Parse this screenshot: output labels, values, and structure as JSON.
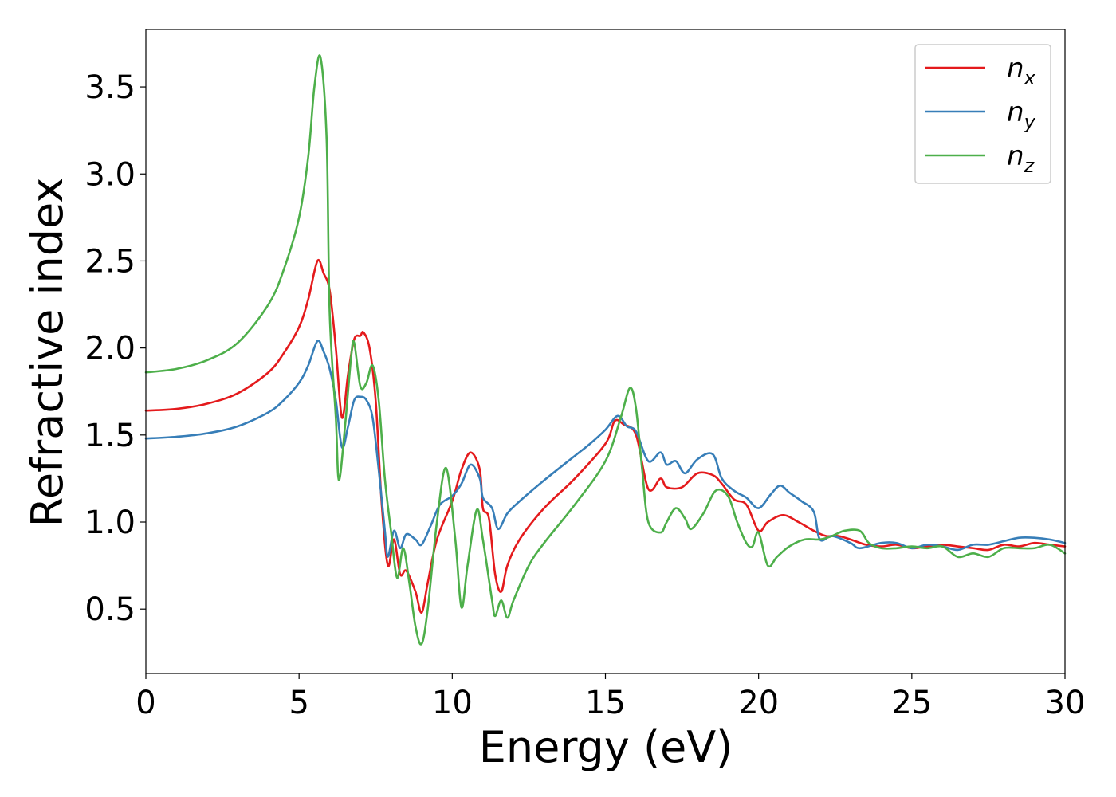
{
  "chart_data": {
    "type": "line",
    "title": "",
    "xlabel": "Energy (eV)",
    "ylabel": "Refractive index",
    "xlim": [
      0,
      30
    ],
    "ylim": [
      0.13,
      3.83
    ],
    "xticks": [
      0,
      5,
      10,
      15,
      20,
      25,
      30
    ],
    "yticks": [
      0.5,
      1.0,
      1.5,
      2.0,
      2.5,
      3.0,
      3.5
    ],
    "xtick_labels": [
      "0",
      "5",
      "10",
      "15",
      "20",
      "25",
      "30"
    ],
    "ytick_labels": [
      "0.5",
      "1.0",
      "1.5",
      "2.0",
      "2.5",
      "3.0",
      "3.5"
    ],
    "grid": false,
    "legend_position": "top-right",
    "series": [
      {
        "base": "n",
        "sub": "x",
        "color": "#e41a1c",
        "points": [
          [
            0,
            1.64
          ],
          [
            1,
            1.65
          ],
          [
            2,
            1.68
          ],
          [
            3,
            1.74
          ],
          [
            4,
            1.86
          ],
          [
            4.5,
            1.97
          ],
          [
            5,
            2.12
          ],
          [
            5.3,
            2.28
          ],
          [
            5.6,
            2.5
          ],
          [
            5.8,
            2.43
          ],
          [
            6.0,
            2.33
          ],
          [
            6.2,
            2.0
          ],
          [
            6.4,
            1.6
          ],
          [
            6.6,
            1.85
          ],
          [
            6.8,
            2.05
          ],
          [
            7.0,
            2.07
          ],
          [
            7.1,
            2.09
          ],
          [
            7.3,
            2.0
          ],
          [
            7.5,
            1.7
          ],
          [
            7.7,
            1.1
          ],
          [
            7.9,
            0.75
          ],
          [
            8.1,
            0.9
          ],
          [
            8.3,
            0.7
          ],
          [
            8.5,
            0.72
          ],
          [
            8.8,
            0.6
          ],
          [
            9.0,
            0.48
          ],
          [
            9.2,
            0.65
          ],
          [
            9.5,
            0.9
          ],
          [
            10.0,
            1.12
          ],
          [
            10.3,
            1.3
          ],
          [
            10.6,
            1.4
          ],
          [
            10.9,
            1.3
          ],
          [
            11.0,
            1.08
          ],
          [
            11.2,
            1.02
          ],
          [
            11.4,
            0.7
          ],
          [
            11.6,
            0.6
          ],
          [
            11.8,
            0.75
          ],
          [
            12.2,
            0.9
          ],
          [
            13.0,
            1.08
          ],
          [
            14.0,
            1.25
          ],
          [
            15.0,
            1.45
          ],
          [
            15.3,
            1.58
          ],
          [
            15.6,
            1.56
          ],
          [
            16.0,
            1.5
          ],
          [
            16.4,
            1.19
          ],
          [
            16.8,
            1.25
          ],
          [
            17.0,
            1.2
          ],
          [
            17.5,
            1.2
          ],
          [
            18.0,
            1.28
          ],
          [
            18.5,
            1.27
          ],
          [
            18.8,
            1.22
          ],
          [
            19.2,
            1.13
          ],
          [
            19.6,
            1.1
          ],
          [
            20.0,
            0.95
          ],
          [
            20.3,
            1.0
          ],
          [
            20.8,
            1.04
          ],
          [
            21.3,
            1.0
          ],
          [
            21.8,
            0.95
          ],
          [
            22.2,
            0.92
          ],
          [
            22.6,
            0.92
          ],
          [
            23.0,
            0.9
          ],
          [
            23.5,
            0.87
          ],
          [
            24.0,
            0.86
          ],
          [
            24.5,
            0.87
          ],
          [
            25.0,
            0.85
          ],
          [
            25.5,
            0.86
          ],
          [
            26.0,
            0.87
          ],
          [
            26.5,
            0.86
          ],
          [
            27.0,
            0.85
          ],
          [
            27.5,
            0.84
          ],
          [
            28.0,
            0.87
          ],
          [
            28.5,
            0.86
          ],
          [
            29.0,
            0.88
          ],
          [
            29.5,
            0.87
          ],
          [
            30.0,
            0.86
          ]
        ]
      },
      {
        "base": "n",
        "sub": "y",
        "color": "#377eb8",
        "points": [
          [
            0,
            1.48
          ],
          [
            1,
            1.49
          ],
          [
            2,
            1.51
          ],
          [
            3,
            1.55
          ],
          [
            4,
            1.63
          ],
          [
            4.5,
            1.7
          ],
          [
            5.0,
            1.8
          ],
          [
            5.3,
            1.9
          ],
          [
            5.6,
            2.04
          ],
          [
            5.8,
            1.98
          ],
          [
            6.0,
            1.88
          ],
          [
            6.2,
            1.7
          ],
          [
            6.4,
            1.43
          ],
          [
            6.6,
            1.55
          ],
          [
            6.8,
            1.7
          ],
          [
            7.0,
            1.72
          ],
          [
            7.2,
            1.7
          ],
          [
            7.4,
            1.6
          ],
          [
            7.6,
            1.3
          ],
          [
            7.8,
            0.95
          ],
          [
            7.9,
            0.8
          ],
          [
            8.1,
            0.95
          ],
          [
            8.3,
            0.85
          ],
          [
            8.5,
            0.93
          ],
          [
            8.8,
            0.9
          ],
          [
            9.0,
            0.87
          ],
          [
            9.3,
            0.98
          ],
          [
            9.6,
            1.1
          ],
          [
            10.0,
            1.15
          ],
          [
            10.3,
            1.22
          ],
          [
            10.6,
            1.33
          ],
          [
            10.9,
            1.25
          ],
          [
            11.0,
            1.14
          ],
          [
            11.3,
            1.08
          ],
          [
            11.5,
            0.96
          ],
          [
            11.8,
            1.05
          ],
          [
            12.2,
            1.12
          ],
          [
            13.0,
            1.24
          ],
          [
            14.0,
            1.38
          ],
          [
            14.5,
            1.45
          ],
          [
            15.0,
            1.53
          ],
          [
            15.4,
            1.61
          ],
          [
            15.7,
            1.55
          ],
          [
            16.0,
            1.52
          ],
          [
            16.4,
            1.35
          ],
          [
            16.8,
            1.4
          ],
          [
            17.0,
            1.33
          ],
          [
            17.3,
            1.35
          ],
          [
            17.6,
            1.28
          ],
          [
            18.0,
            1.36
          ],
          [
            18.5,
            1.39
          ],
          [
            18.8,
            1.25
          ],
          [
            19.2,
            1.18
          ],
          [
            19.6,
            1.14
          ],
          [
            20.0,
            1.08
          ],
          [
            20.4,
            1.16
          ],
          [
            20.7,
            1.21
          ],
          [
            21.0,
            1.17
          ],
          [
            21.4,
            1.12
          ],
          [
            21.8,
            1.06
          ],
          [
            22.0,
            0.9
          ],
          [
            22.4,
            0.92
          ],
          [
            23.0,
            0.88
          ],
          [
            23.3,
            0.85
          ],
          [
            24.0,
            0.88
          ],
          [
            24.5,
            0.88
          ],
          [
            25.0,
            0.85
          ],
          [
            25.5,
            0.87
          ],
          [
            26.0,
            0.86
          ],
          [
            26.5,
            0.84
          ],
          [
            27.0,
            0.87
          ],
          [
            27.5,
            0.87
          ],
          [
            28.0,
            0.89
          ],
          [
            28.5,
            0.91
          ],
          [
            29.0,
            0.91
          ],
          [
            29.5,
            0.9
          ],
          [
            30.0,
            0.88
          ]
        ]
      },
      {
        "base": "n",
        "sub": "z",
        "color": "#4daf4a",
        "points": [
          [
            0,
            1.86
          ],
          [
            1,
            1.88
          ],
          [
            2,
            1.93
          ],
          [
            3,
            2.03
          ],
          [
            4,
            2.25
          ],
          [
            4.5,
            2.45
          ],
          [
            5.0,
            2.75
          ],
          [
            5.3,
            3.1
          ],
          [
            5.5,
            3.5
          ],
          [
            5.7,
            3.67
          ],
          [
            5.9,
            3.2
          ],
          [
            6.0,
            2.2
          ],
          [
            6.2,
            1.6
          ],
          [
            6.3,
            1.24
          ],
          [
            6.5,
            1.55
          ],
          [
            6.7,
            1.95
          ],
          [
            6.8,
            2.03
          ],
          [
            7.0,
            1.78
          ],
          [
            7.2,
            1.8
          ],
          [
            7.4,
            1.9
          ],
          [
            7.6,
            1.7
          ],
          [
            7.8,
            1.25
          ],
          [
            8.0,
            0.95
          ],
          [
            8.2,
            0.68
          ],
          [
            8.4,
            0.85
          ],
          [
            8.6,
            0.65
          ],
          [
            8.8,
            0.4
          ],
          [
            9.0,
            0.3
          ],
          [
            9.2,
            0.5
          ],
          [
            9.5,
            1.0
          ],
          [
            9.8,
            1.31
          ],
          [
            10.1,
            0.9
          ],
          [
            10.3,
            0.51
          ],
          [
            10.5,
            0.75
          ],
          [
            10.8,
            1.07
          ],
          [
            11.0,
            0.9
          ],
          [
            11.3,
            0.55
          ],
          [
            11.4,
            0.46
          ],
          [
            11.6,
            0.55
          ],
          [
            11.8,
            0.45
          ],
          [
            12.0,
            0.55
          ],
          [
            12.5,
            0.75
          ],
          [
            13.0,
            0.88
          ],
          [
            14.0,
            1.1
          ],
          [
            15.0,
            1.35
          ],
          [
            15.5,
            1.6
          ],
          [
            15.8,
            1.77
          ],
          [
            16.0,
            1.65
          ],
          [
            16.2,
            1.3
          ],
          [
            16.4,
            1.0
          ],
          [
            16.8,
            0.94
          ],
          [
            17.0,
            1.0
          ],
          [
            17.3,
            1.08
          ],
          [
            17.6,
            1.02
          ],
          [
            17.8,
            0.96
          ],
          [
            18.2,
            1.05
          ],
          [
            18.6,
            1.18
          ],
          [
            19.0,
            1.15
          ],
          [
            19.3,
            1.0
          ],
          [
            19.6,
            0.88
          ],
          [
            19.8,
            0.86
          ],
          [
            20.0,
            0.94
          ],
          [
            20.3,
            0.75
          ],
          [
            20.6,
            0.8
          ],
          [
            21.0,
            0.86
          ],
          [
            21.5,
            0.9
          ],
          [
            22.0,
            0.9
          ],
          [
            22.4,
            0.92
          ],
          [
            22.8,
            0.95
          ],
          [
            23.3,
            0.95
          ],
          [
            23.6,
            0.88
          ],
          [
            24.0,
            0.85
          ],
          [
            24.5,
            0.85
          ],
          [
            25.0,
            0.86
          ],
          [
            25.5,
            0.85
          ],
          [
            26.0,
            0.86
          ],
          [
            26.5,
            0.8
          ],
          [
            27.0,
            0.82
          ],
          [
            27.5,
            0.8
          ],
          [
            28.0,
            0.85
          ],
          [
            28.5,
            0.85
          ],
          [
            29.0,
            0.85
          ],
          [
            29.5,
            0.87
          ],
          [
            30.0,
            0.82
          ]
        ]
      }
    ]
  }
}
